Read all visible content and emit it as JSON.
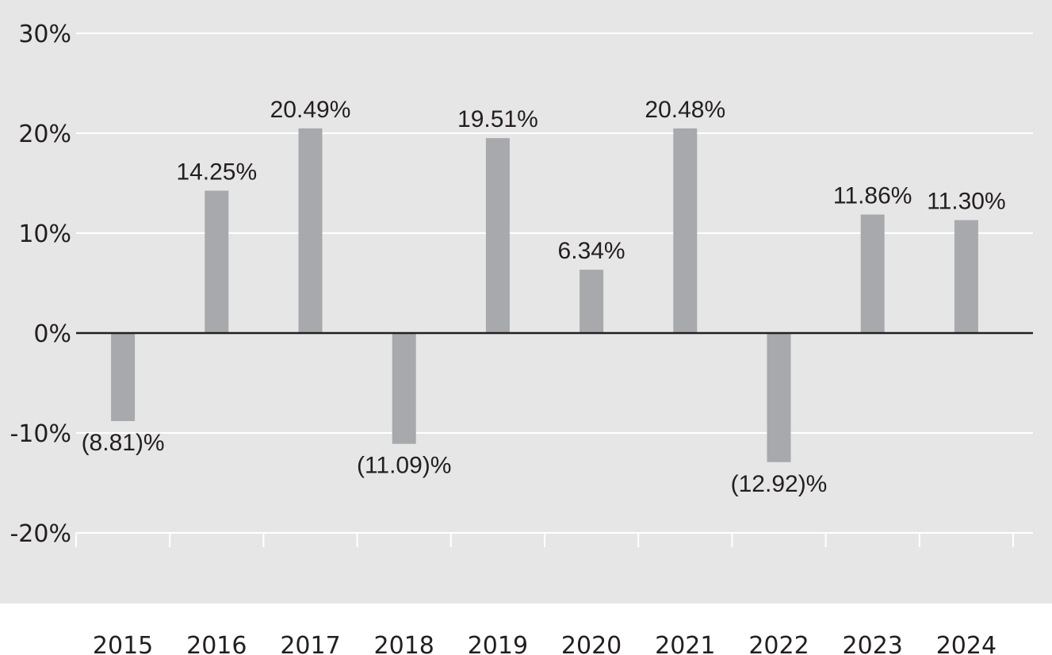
{
  "chart_data": {
    "type": "bar",
    "categories": [
      "2015",
      "2016",
      "2017",
      "2018",
      "2019",
      "2020",
      "2021",
      "2022",
      "2023",
      "2024"
    ],
    "values": [
      -8.81,
      14.25,
      20.49,
      -11.09,
      19.51,
      6.34,
      20.48,
      -12.92,
      11.86,
      11.3
    ],
    "data_labels": [
      "(8.81)%",
      "14.25%",
      "20.49%",
      "(11.09)%",
      "19.51%",
      "6.34%",
      "20.48%",
      "(12.92)%",
      "11.86%",
      "11.30%"
    ],
    "y_ticks": [
      30,
      20,
      10,
      0,
      -10,
      -20
    ],
    "y_tick_labels": [
      "30%",
      "20%",
      "10%",
      "0%",
      "-10%",
      "-20%"
    ],
    "ylim": [
      -20,
      30
    ],
    "title": "",
    "xlabel": "",
    "ylabel": "",
    "grid": true,
    "legend": "none",
    "colors": {
      "bar": "#a7a9ac",
      "plot_background": "#e6e6e6",
      "gridline": "#ffffff",
      "zero_line": "#231f20",
      "text": "#231f20"
    }
  }
}
